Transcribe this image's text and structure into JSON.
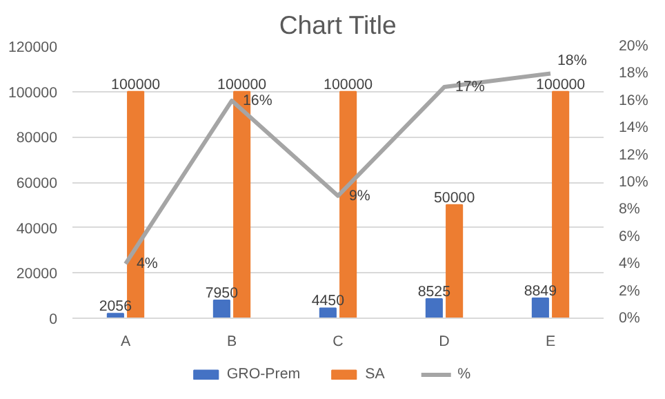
{
  "chart_data": {
    "type": "bar",
    "title": "Chart Title",
    "categories": [
      "A",
      "B",
      "C",
      "D",
      "E"
    ],
    "series": [
      {
        "name": "GRO-Prem",
        "color": "#4472c4",
        "values": [
          2056,
          7950,
          4450,
          8525,
          8849
        ],
        "value_labels": [
          "2056",
          "7950",
          "4450",
          "8525",
          "8849"
        ]
      },
      {
        "name": "SA",
        "color": "#ed7d31",
        "values": [
          100000,
          100000,
          100000,
          50000,
          100000
        ],
        "value_labels": [
          "100000",
          "100000",
          "100000",
          "50000",
          "100000"
        ]
      },
      {
        "name": "%",
        "color": "#a5a5a5",
        "type": "line",
        "axis": "y2",
        "values": [
          4,
          16,
          9,
          17,
          18
        ],
        "value_labels": [
          "4%",
          "16%",
          "9%",
          "17%",
          "18%"
        ]
      }
    ],
    "ylim": [
      0,
      120000
    ],
    "yticks": [
      0,
      20000,
      40000,
      60000,
      80000,
      100000,
      120000
    ],
    "y2lim": [
      0,
      20
    ],
    "y2ticks": [
      {
        "value": 0,
        "label": "0%"
      },
      {
        "value": 2,
        "label": "2%"
      },
      {
        "value": 4,
        "label": "4%"
      },
      {
        "value": 6,
        "label": "6%"
      },
      {
        "value": 8,
        "label": "8%"
      },
      {
        "value": 10,
        "label": "10%"
      },
      {
        "value": 12,
        "label": "12%"
      },
      {
        "value": 14,
        "label": "14%"
      },
      {
        "value": 16,
        "label": "16%"
      },
      {
        "value": 18,
        "label": "18%"
      },
      {
        "value": 20,
        "label": "20%"
      }
    ],
    "grid": "y",
    "legend": "bottom"
  }
}
